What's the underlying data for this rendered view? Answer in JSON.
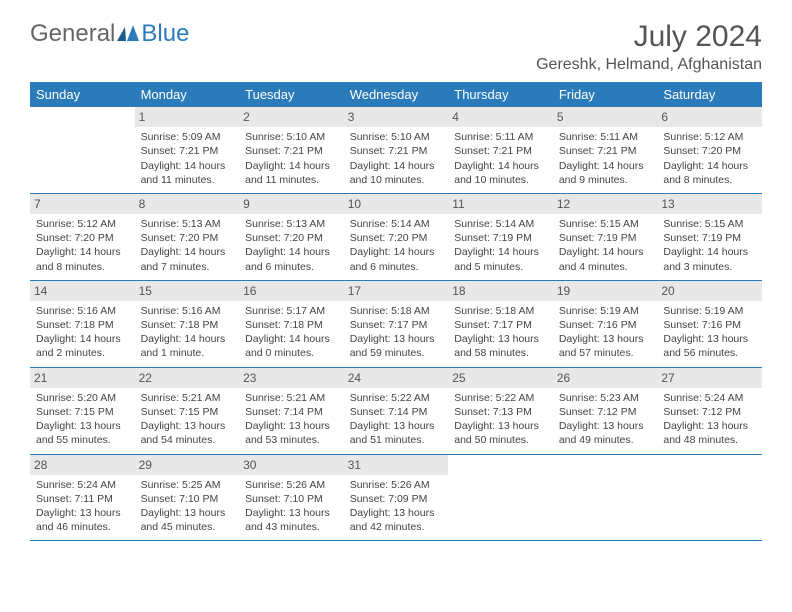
{
  "logo": {
    "general": "General",
    "blue": "Blue"
  },
  "title": "July 2024",
  "subtitle": "Gereshk, Helmand, Afghanistan",
  "colors": {
    "header_bg": "#2b7bba",
    "header_text": "#ffffff",
    "daynum_bg": "#e8e8e8",
    "text": "#444444",
    "border": "#2b7bba"
  },
  "daysOfWeek": [
    "Sunday",
    "Monday",
    "Tuesday",
    "Wednesday",
    "Thursday",
    "Friday",
    "Saturday"
  ],
  "weeks": [
    [
      null,
      {
        "n": "1",
        "sr": "5:09 AM",
        "ss": "7:21 PM",
        "dl": "14 hours and 11 minutes."
      },
      {
        "n": "2",
        "sr": "5:10 AM",
        "ss": "7:21 PM",
        "dl": "14 hours and 11 minutes."
      },
      {
        "n": "3",
        "sr": "5:10 AM",
        "ss": "7:21 PM",
        "dl": "14 hours and 10 minutes."
      },
      {
        "n": "4",
        "sr": "5:11 AM",
        "ss": "7:21 PM",
        "dl": "14 hours and 10 minutes."
      },
      {
        "n": "5",
        "sr": "5:11 AM",
        "ss": "7:21 PM",
        "dl": "14 hours and 9 minutes."
      },
      {
        "n": "6",
        "sr": "5:12 AM",
        "ss": "7:20 PM",
        "dl": "14 hours and 8 minutes."
      }
    ],
    [
      {
        "n": "7",
        "sr": "5:12 AM",
        "ss": "7:20 PM",
        "dl": "14 hours and 8 minutes."
      },
      {
        "n": "8",
        "sr": "5:13 AM",
        "ss": "7:20 PM",
        "dl": "14 hours and 7 minutes."
      },
      {
        "n": "9",
        "sr": "5:13 AM",
        "ss": "7:20 PM",
        "dl": "14 hours and 6 minutes."
      },
      {
        "n": "10",
        "sr": "5:14 AM",
        "ss": "7:20 PM",
        "dl": "14 hours and 6 minutes."
      },
      {
        "n": "11",
        "sr": "5:14 AM",
        "ss": "7:19 PM",
        "dl": "14 hours and 5 minutes."
      },
      {
        "n": "12",
        "sr": "5:15 AM",
        "ss": "7:19 PM",
        "dl": "14 hours and 4 minutes."
      },
      {
        "n": "13",
        "sr": "5:15 AM",
        "ss": "7:19 PM",
        "dl": "14 hours and 3 minutes."
      }
    ],
    [
      {
        "n": "14",
        "sr": "5:16 AM",
        "ss": "7:18 PM",
        "dl": "14 hours and 2 minutes."
      },
      {
        "n": "15",
        "sr": "5:16 AM",
        "ss": "7:18 PM",
        "dl": "14 hours and 1 minute."
      },
      {
        "n": "16",
        "sr": "5:17 AM",
        "ss": "7:18 PM",
        "dl": "14 hours and 0 minutes."
      },
      {
        "n": "17",
        "sr": "5:18 AM",
        "ss": "7:17 PM",
        "dl": "13 hours and 59 minutes."
      },
      {
        "n": "18",
        "sr": "5:18 AM",
        "ss": "7:17 PM",
        "dl": "13 hours and 58 minutes."
      },
      {
        "n": "19",
        "sr": "5:19 AM",
        "ss": "7:16 PM",
        "dl": "13 hours and 57 minutes."
      },
      {
        "n": "20",
        "sr": "5:19 AM",
        "ss": "7:16 PM",
        "dl": "13 hours and 56 minutes."
      }
    ],
    [
      {
        "n": "21",
        "sr": "5:20 AM",
        "ss": "7:15 PM",
        "dl": "13 hours and 55 minutes."
      },
      {
        "n": "22",
        "sr": "5:21 AM",
        "ss": "7:15 PM",
        "dl": "13 hours and 54 minutes."
      },
      {
        "n": "23",
        "sr": "5:21 AM",
        "ss": "7:14 PM",
        "dl": "13 hours and 53 minutes."
      },
      {
        "n": "24",
        "sr": "5:22 AM",
        "ss": "7:14 PM",
        "dl": "13 hours and 51 minutes."
      },
      {
        "n": "25",
        "sr": "5:22 AM",
        "ss": "7:13 PM",
        "dl": "13 hours and 50 minutes."
      },
      {
        "n": "26",
        "sr": "5:23 AM",
        "ss": "7:12 PM",
        "dl": "13 hours and 49 minutes."
      },
      {
        "n": "27",
        "sr": "5:24 AM",
        "ss": "7:12 PM",
        "dl": "13 hours and 48 minutes."
      }
    ],
    [
      {
        "n": "28",
        "sr": "5:24 AM",
        "ss": "7:11 PM",
        "dl": "13 hours and 46 minutes."
      },
      {
        "n": "29",
        "sr": "5:25 AM",
        "ss": "7:10 PM",
        "dl": "13 hours and 45 minutes."
      },
      {
        "n": "30",
        "sr": "5:26 AM",
        "ss": "7:10 PM",
        "dl": "13 hours and 43 minutes."
      },
      {
        "n": "31",
        "sr": "5:26 AM",
        "ss": "7:09 PM",
        "dl": "13 hours and 42 minutes."
      },
      null,
      null,
      null
    ]
  ],
  "labels": {
    "sunrise": "Sunrise: ",
    "sunset": "Sunset: ",
    "daylight": "Daylight: "
  }
}
